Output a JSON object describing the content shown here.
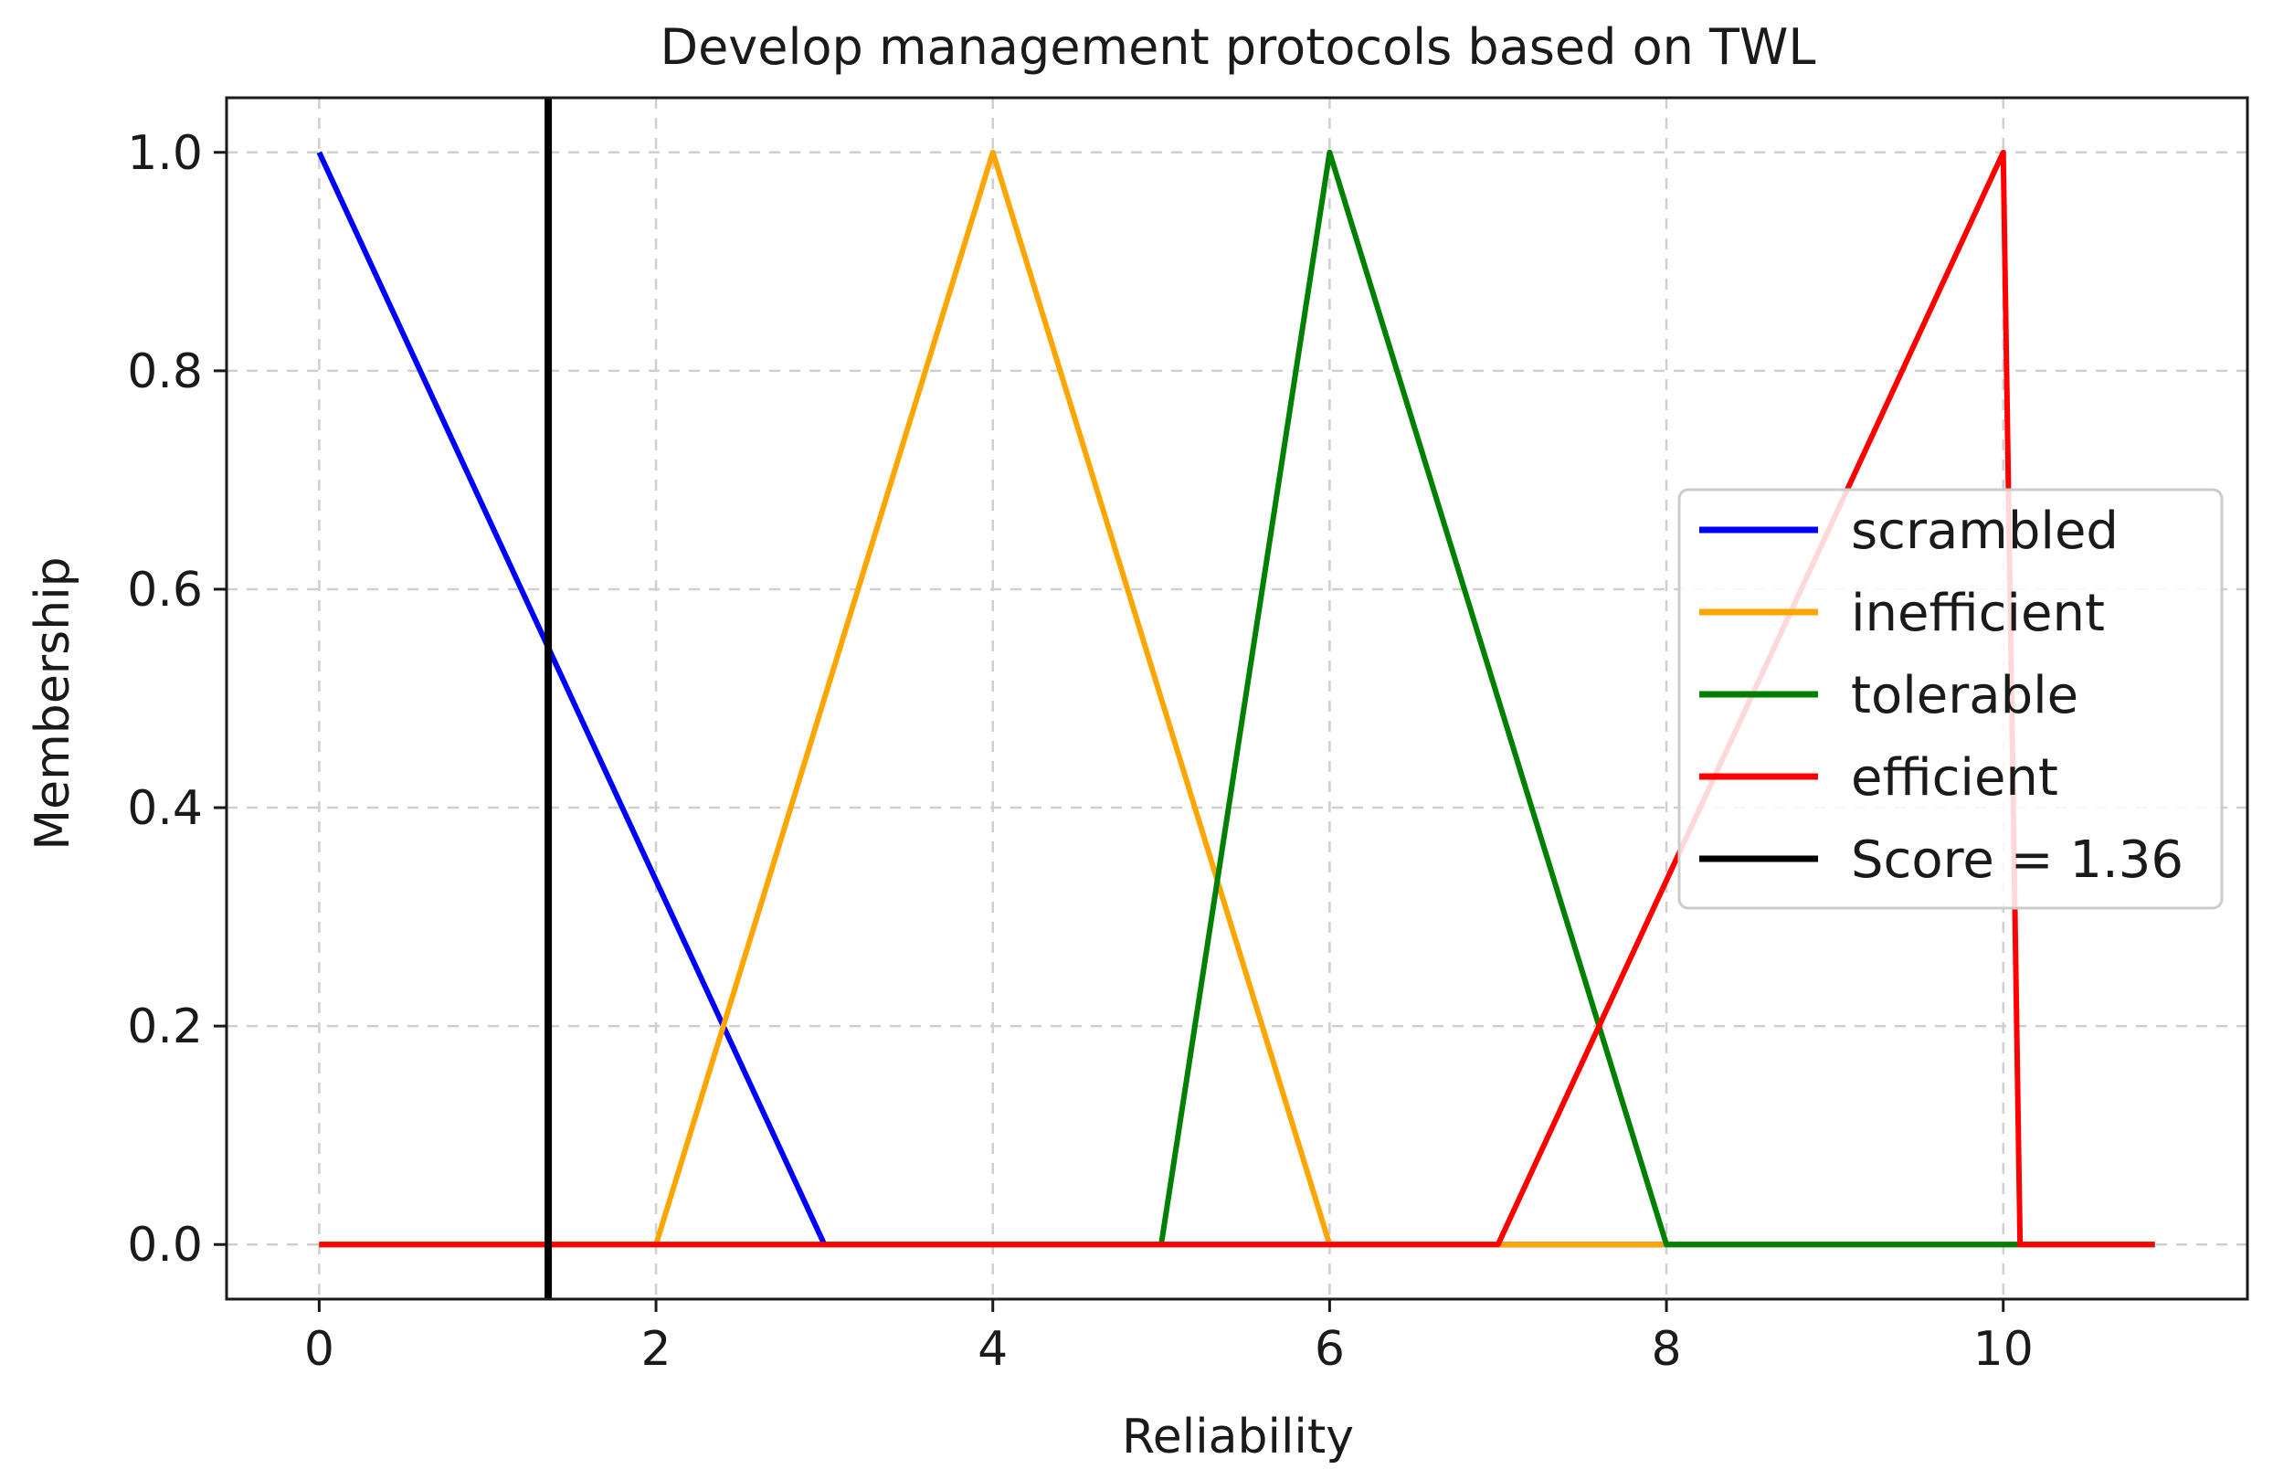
{
  "chart_data": {
    "type": "line",
    "title": "Develop management protocols based on TWL",
    "xlabel": "Reliability",
    "ylabel": "Membership",
    "xlim": [
      -0.55,
      11.45
    ],
    "ylim": [
      -0.05,
      1.05
    ],
    "xticks": [
      0,
      2,
      4,
      6,
      8,
      10
    ],
    "xtick_labels": [
      "0",
      "2",
      "4",
      "6",
      "8",
      "10"
    ],
    "yticks": [
      0.0,
      0.2,
      0.4,
      0.6,
      0.8,
      1.0
    ],
    "ytick_labels": [
      "0.0",
      "0.2",
      "0.4",
      "0.6",
      "0.8",
      "1.0"
    ],
    "grid": true,
    "legend_position": "center-right",
    "series": [
      {
        "name": "scrambled",
        "color": "#0000ff",
        "x": [
          0,
          3,
          10.9
        ],
        "y": [
          1,
          0,
          0
        ]
      },
      {
        "name": "inefficient",
        "color": "#ffa500",
        "x": [
          0,
          2,
          4,
          6,
          10.9
        ],
        "y": [
          0,
          0,
          1,
          0,
          0
        ]
      },
      {
        "name": "tolerable",
        "color": "#008000",
        "x": [
          0,
          5,
          6,
          8,
          10.9
        ],
        "y": [
          0,
          0,
          1,
          0,
          0
        ]
      },
      {
        "name": "efficient",
        "color": "#ff0000",
        "x": [
          0,
          7,
          10,
          10.1,
          10.9
        ],
        "y": [
          0,
          0,
          1,
          0,
          0
        ]
      }
    ],
    "score": {
      "name": "Score = 1.36",
      "value": 1.36,
      "color": "#000000"
    }
  }
}
